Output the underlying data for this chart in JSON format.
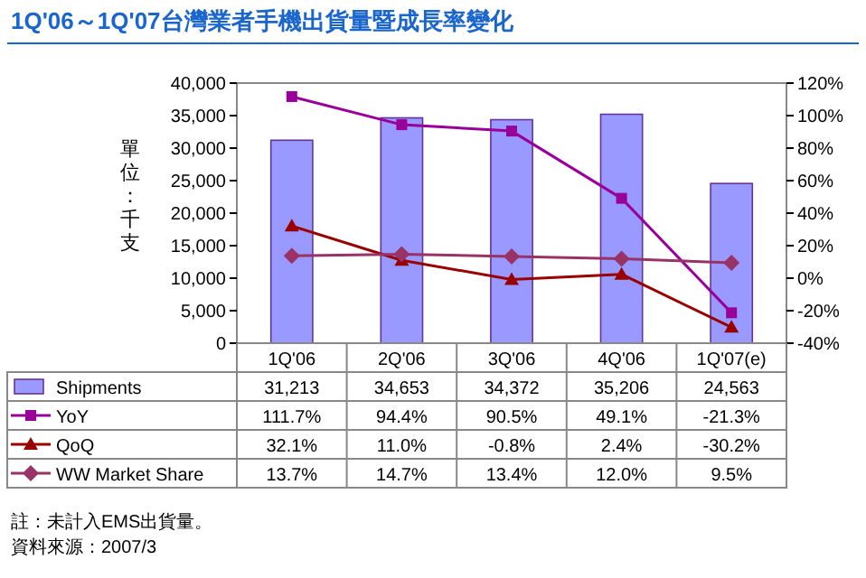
{
  "chart_data": {
    "type": "bar",
    "title": "1Q'06～1Q'07台灣業者手機出貨量暨成長率變化",
    "ylabel": "單位：千支",
    "categories": [
      "1Q'06",
      "2Q'06",
      "3Q'06",
      "4Q'06",
      "1Q'07(e)"
    ],
    "series": [
      {
        "name": "Shipments",
        "color": "#9999ff",
        "values": [
          31213,
          34653,
          34372,
          35206,
          24563
        ],
        "value_labels": [
          "31,213",
          "34,653",
          "34,372",
          "35,206",
          "24,563"
        ]
      },
      {
        "name": "YoY",
        "type": "line",
        "axis": "y2",
        "color": "#990099",
        "marker": "square",
        "values": [
          111.7,
          94.4,
          90.5,
          49.1,
          -21.3
        ],
        "value_labels": [
          "111.7%",
          "94.4%",
          "90.5%",
          "49.1%",
          "-21.3%"
        ]
      },
      {
        "name": "QoQ",
        "type": "line",
        "axis": "y2",
        "color": "#990000",
        "marker": "triangle",
        "values": [
          32.1,
          11.0,
          -0.8,
          2.4,
          -30.2
        ],
        "value_labels": [
          "32.1%",
          "11.0%",
          "-0.8%",
          "2.4%",
          "-30.2%"
        ]
      },
      {
        "name": "WW Market Share",
        "type": "line",
        "axis": "y2",
        "color": "#993366",
        "marker": "diamond",
        "values": [
          13.7,
          14.7,
          13.4,
          12.0,
          9.5
        ],
        "value_labels": [
          "13.7%",
          "14.7%",
          "13.4%",
          "12.0%",
          "9.5%"
        ]
      }
    ],
    "ylim": [
      0,
      40000
    ],
    "yticks": [
      0,
      {
        "value": 5000,
        "label": "5,000"
      },
      {
        "value": 10000,
        "label": "10,000"
      },
      {
        "value": 15000,
        "label": "15,000"
      },
      {
        "value": 20000,
        "label": "20,000"
      },
      {
        "value": 25000,
        "label": "25,000"
      },
      {
        "value": 30000,
        "label": "30,000"
      },
      {
        "value": 35000,
        "label": "35,000"
      },
      {
        "value": 40000,
        "label": "40,000"
      }
    ],
    "y2lim": [
      -40,
      120
    ],
    "y2ticks": [
      {
        "value": -40,
        "label": "-40%"
      },
      {
        "value": -20,
        "label": "-20%"
      },
      {
        "value": 0,
        "label": "0%"
      },
      {
        "value": 20,
        "label": "20%"
      },
      {
        "value": 40,
        "label": "40%"
      },
      {
        "value": 60,
        "label": "60%"
      },
      {
        "value": 80,
        "label": "80%"
      },
      {
        "value": 100,
        "label": "100%"
      },
      {
        "value": 120,
        "label": "120%"
      }
    ],
    "legend": "bottom",
    "grid": false,
    "annotations": [
      "註：未計入EMS出貨量。",
      "資料來源：2007/3"
    ]
  }
}
